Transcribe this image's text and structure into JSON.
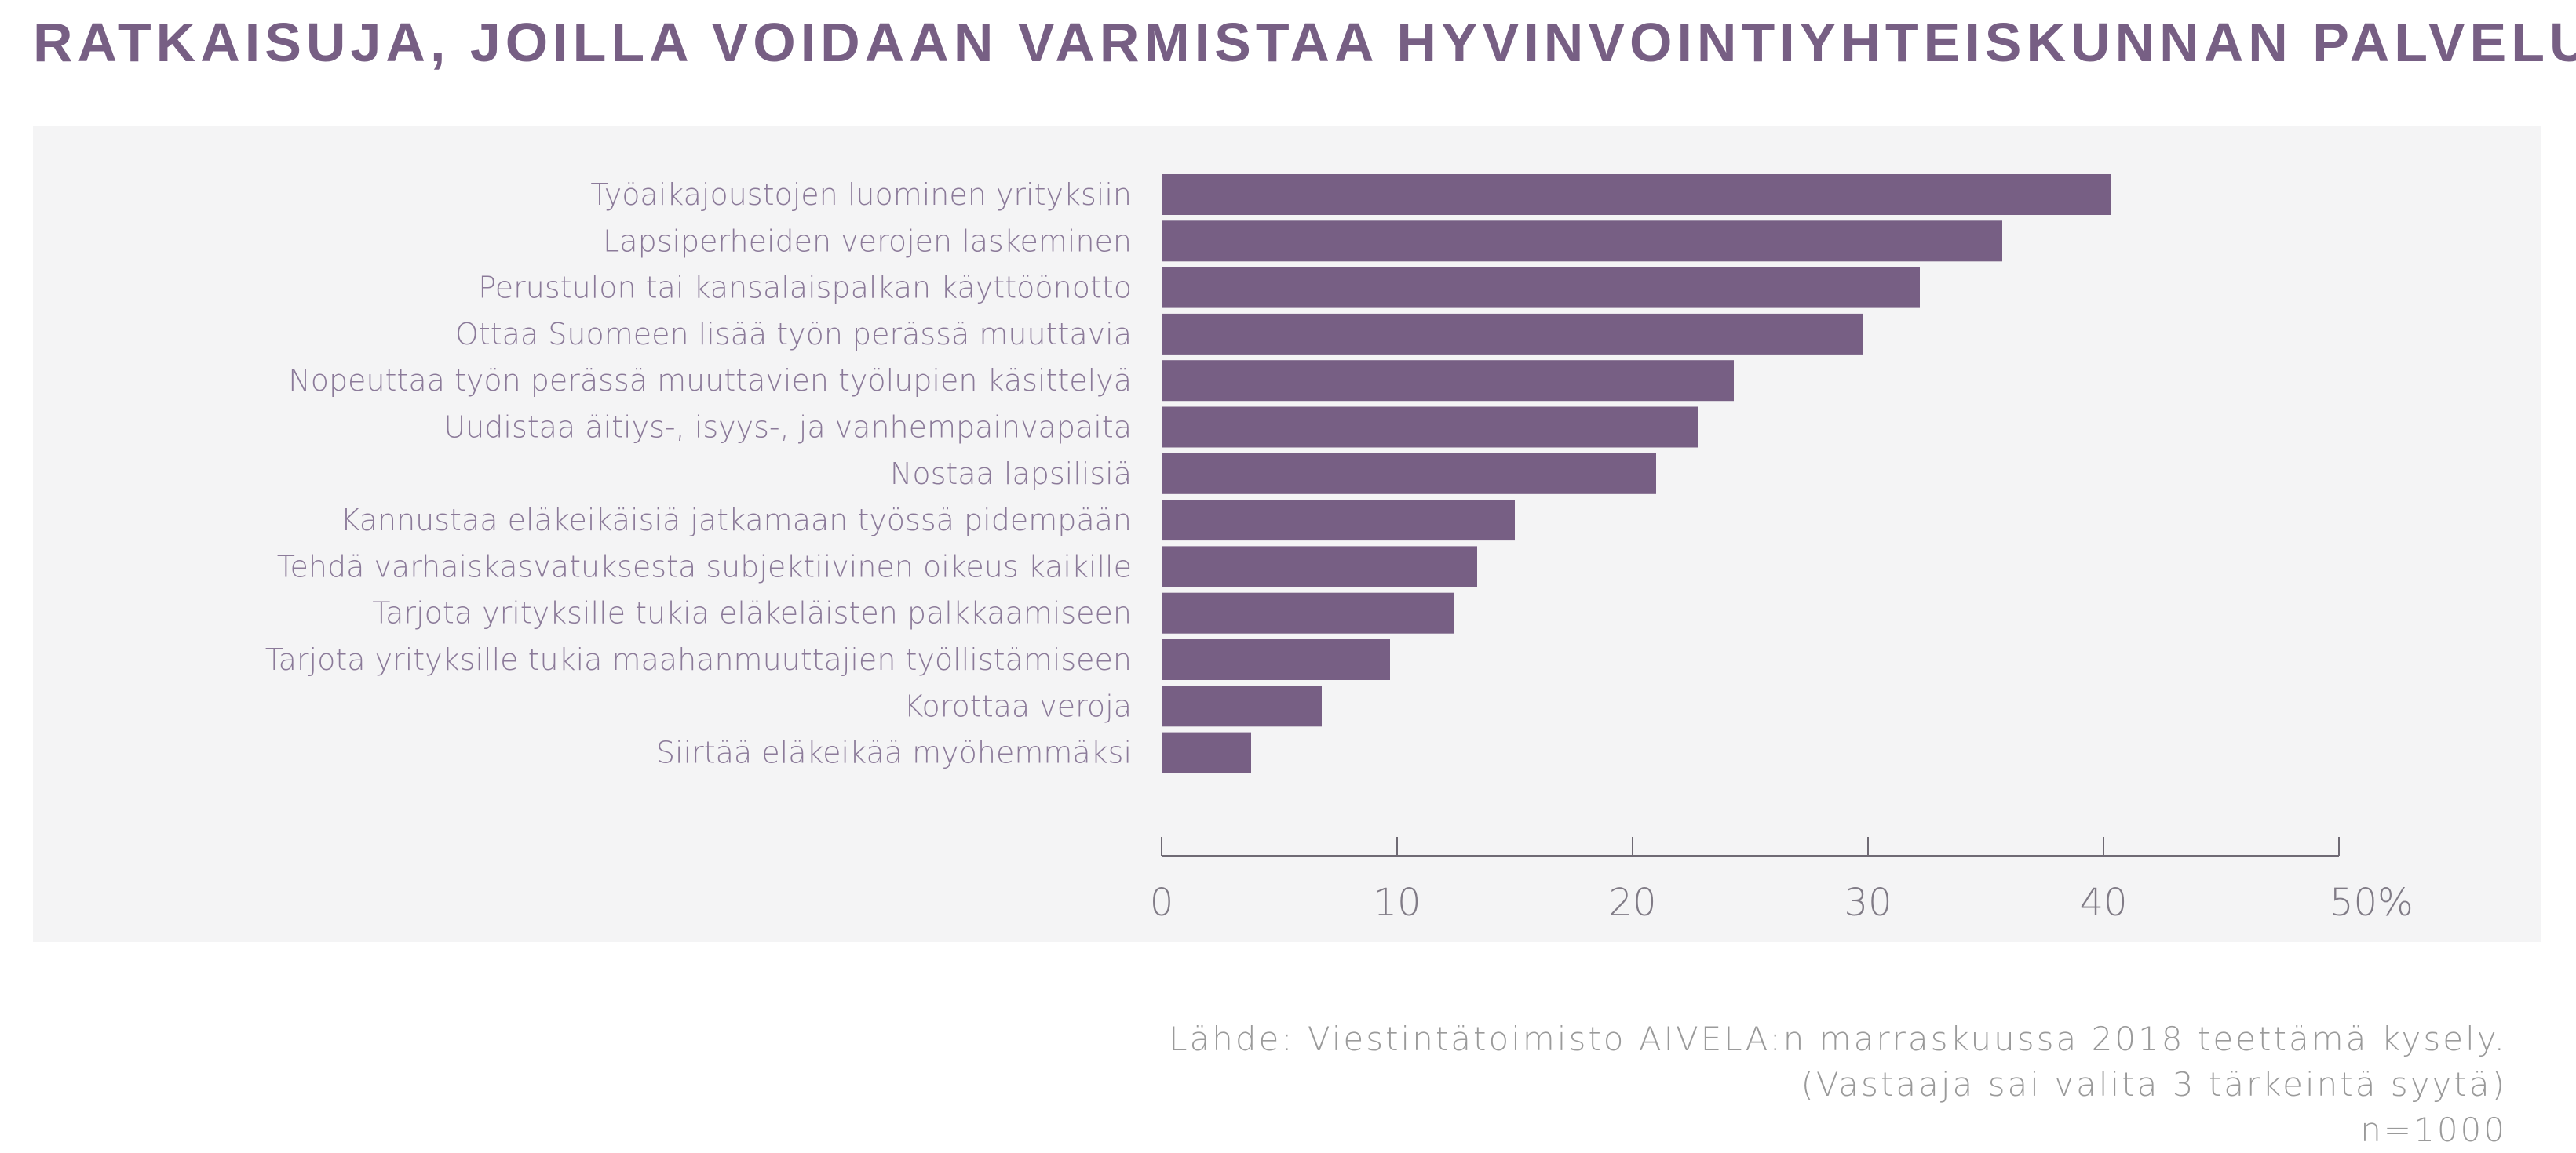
{
  "title": "RATKAISUJA, JOILLA VOIDAAN VARMISTAA HYVINVOINTIYHTEISKUNNAN PALVELUT",
  "colors": {
    "bar": "#775f84",
    "title": "#775f84",
    "panel": "#f4f4f5",
    "label": "#8b7a99",
    "axis": "#6f6a74",
    "source": "#9a9a9a"
  },
  "chart_data": {
    "type": "bar",
    "orientation": "horizontal",
    "categories": [
      "Työaikajoustojen luominen yrityksiin",
      "Lapsiperheiden verojen laskeminen",
      "Perustulon tai kansalaispalkan käyttöönotto",
      "Ottaa Suomeen lisää työn perässä muuttavia",
      "Nopeuttaa työn perässä muuttavien työlupien käsittelyä",
      "Uudistaa äitiys-, isyys-, ja vanhempainvapaita",
      "Nostaa lapsilisiä",
      "Kannustaa eläkeikäisiä jatkamaan työssä pidempään",
      "Tehdä varhaiskasvatuksesta subjektiivinen oikeus kaikille",
      "Tarjota yrityksille tukia eläkeläisten palkkaamiseen",
      "Tarjota yrityksille tukia maahanmuuttajien työllistämiseen",
      "Korottaa veroja",
      "Siirtää eläkeikää myöhemmäksi"
    ],
    "values": [
      40.3,
      35.7,
      32.2,
      29.8,
      24.3,
      22.8,
      21.0,
      15.0,
      13.4,
      12.4,
      9.7,
      6.8,
      3.8
    ],
    "xlim": [
      0,
      50
    ],
    "xticks": [
      0,
      10,
      20,
      30,
      40,
      50
    ],
    "xtick_labels": [
      "0",
      "10",
      "20",
      "30",
      "40",
      "50%"
    ],
    "grid": false
  },
  "source": {
    "line1": "Lähde: Viestintätoimisto AIVELA:n marraskuussa 2018 teettämä kysely.",
    "line2": "(Vastaaja sai valita 3 tärkeintä syytä)",
    "line3": "n=1000"
  }
}
